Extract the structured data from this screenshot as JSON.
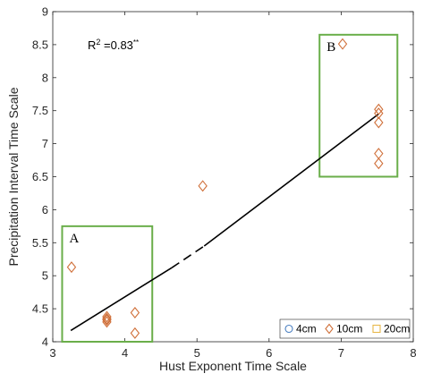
{
  "chart_data": {
    "type": "scatter",
    "xlabel": "Hust Exponent Time Scale",
    "ylabel": "Precipitation Interval Time Scale",
    "xlim": [
      3,
      8
    ],
    "ylim": [
      4,
      9
    ],
    "xticks": [
      "3",
      "4",
      "5",
      "6",
      "7",
      "8"
    ],
    "yticks": [
      "4",
      "4.5",
      "5",
      "5.5",
      "6",
      "6.5",
      "7",
      "7.5",
      "8",
      "8.5",
      "9"
    ],
    "grid": false,
    "annotation": {
      "r2_base": "R",
      "r2_sup": "2",
      "r2_value": " =0.83",
      "r2_sig": "**"
    },
    "regions": [
      {
        "label": "A",
        "x": [
          3.13,
          4.38
        ],
        "y": [
          4.0,
          5.75
        ],
        "color": "#6aae4a"
      },
      {
        "label": "B",
        "x": [
          6.7,
          7.78
        ],
        "y": [
          6.5,
          8.65
        ],
        "color": "#6aae4a"
      }
    ],
    "series": [
      {
        "name": "10cm",
        "marker": "diamond",
        "color": "#d0703a",
        "points": [
          [
            3.26,
            5.13
          ],
          [
            3.75,
            4.38
          ],
          [
            3.75,
            4.35
          ],
          [
            3.75,
            4.33
          ],
          [
            3.75,
            4.3
          ],
          [
            4.14,
            4.44
          ],
          [
            4.14,
            4.13
          ],
          [
            5.08,
            6.36
          ],
          [
            7.02,
            8.51
          ],
          [
            7.52,
            7.52
          ],
          [
            7.52,
            7.46
          ],
          [
            7.52,
            7.32
          ],
          [
            7.52,
            6.85
          ],
          [
            7.52,
            6.7
          ]
        ]
      }
    ],
    "trendline": {
      "color": "#000000",
      "segments": [
        {
          "style": "solid",
          "from": [
            3.25,
            4.17
          ],
          "to": [
            4.65,
            5.12
          ]
        },
        {
          "style": "dashed",
          "from": [
            4.65,
            5.12
          ],
          "to": [
            5.1,
            5.45
          ]
        },
        {
          "style": "solid",
          "from": [
            5.1,
            5.45
          ],
          "to": [
            7.52,
            7.45
          ]
        }
      ]
    },
    "legend": {
      "position": "bottom-right",
      "entries": [
        {
          "label": "4cm",
          "marker": "circle",
          "color": "#4a7fc1"
        },
        {
          "label": "10cm",
          "marker": "diamond",
          "color": "#d0703a"
        },
        {
          "label": "20cm",
          "marker": "square",
          "color": "#e8b84a"
        }
      ]
    }
  }
}
